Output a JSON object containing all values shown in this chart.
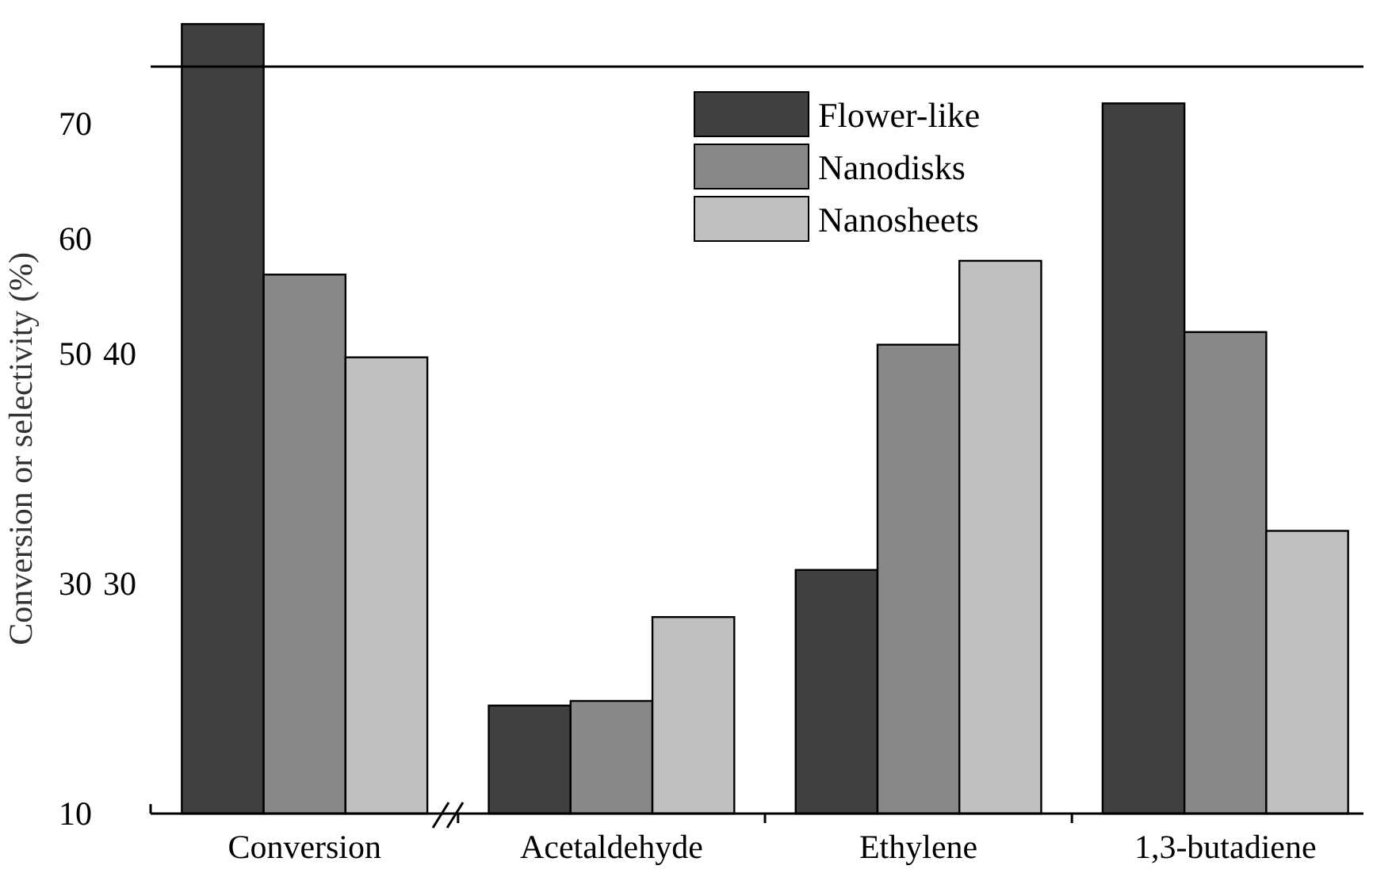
{
  "chart_data": {
    "type": "bar",
    "ylabel": "Conversion or selectivity (%)",
    "categories": [
      "Conversion",
      "Acetaldehyde",
      "Ethylene",
      "1,3-butadiene"
    ],
    "series": [
      {
        "name": "Flower-like",
        "color": "#404040",
        "values": [
          78.7,
          19.4,
          31.2,
          71.8
        ]
      },
      {
        "name": "Nanodisks",
        "color": "#888888",
        "values": [
          56.9,
          19.8,
          50.8,
          51.9
        ]
      },
      {
        "name": "Nanosheets",
        "color": "#c0c0c0",
        "values": [
          49.7,
          27.1,
          58.1,
          34.6
        ]
      }
    ],
    "ylim": [
      10,
      79
    ],
    "yticks": [
      10,
      30,
      50,
      60,
      70
    ],
    "y2lim": [
      20,
      54.5
    ],
    "y2ticks": [
      30,
      40
    ],
    "ref_lines": [
      {
        "axis": "y",
        "value": 75,
        "color": "#000000"
      }
    ],
    "legend": "top"
  }
}
